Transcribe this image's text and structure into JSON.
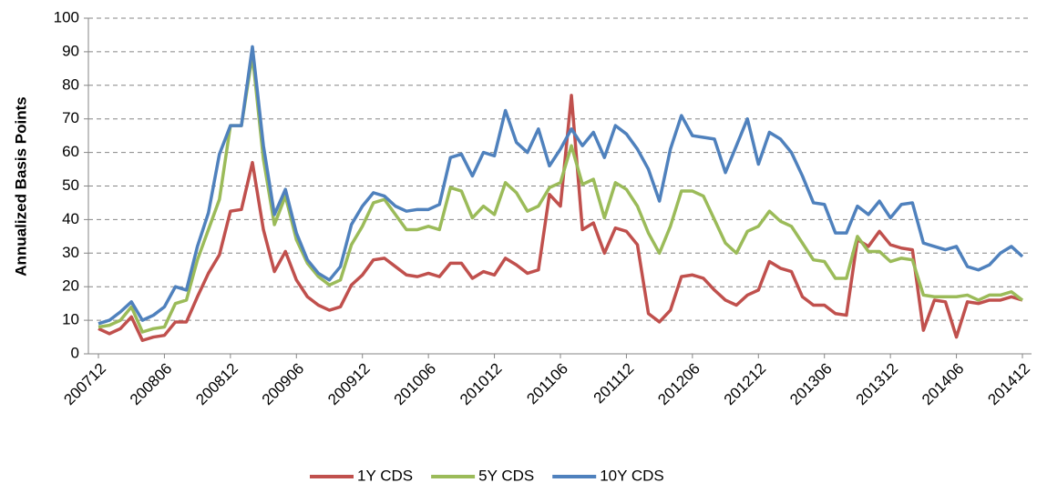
{
  "chart_data": {
    "type": "line",
    "y_label": "Annualized Basis Points",
    "categories": [
      "200712",
      null,
      null,
      null,
      null,
      null,
      "200806",
      null,
      null,
      null,
      null,
      null,
      "200812",
      null,
      null,
      null,
      null,
      null,
      "200906",
      null,
      null,
      null,
      null,
      null,
      "200912",
      null,
      null,
      null,
      null,
      null,
      "201006",
      null,
      null,
      null,
      null,
      null,
      "201012",
      null,
      null,
      null,
      null,
      null,
      "201106",
      null,
      null,
      null,
      null,
      null,
      "201112",
      null,
      null,
      null,
      null,
      null,
      "201206",
      null,
      null,
      null,
      null,
      null,
      "201212",
      null,
      null,
      null,
      null,
      null,
      "201306",
      null,
      null,
      null,
      null,
      null,
      "201312",
      null,
      null,
      null,
      null,
      null,
      "201406",
      null,
      null,
      null,
      null,
      null,
      "201412"
    ],
    "series": [
      {
        "name": "1Y CDS",
        "color": "#c0504d",
        "values": [
          7.5,
          6,
          7.5,
          11,
          4,
          5,
          5.5,
          9.5,
          9.5,
          17,
          24,
          29.5,
          42.5,
          43,
          57,
          37,
          24.5,
          30.5,
          22,
          17,
          14.5,
          13,
          14,
          20.5,
          23.5,
          28,
          28.5,
          26,
          23.5,
          23,
          24,
          23,
          27,
          27,
          22.5,
          24.5,
          23.5,
          28.5,
          26.5,
          24,
          25,
          47.5,
          44,
          77,
          37,
          39,
          30,
          37.5,
          36.5,
          32.5,
          12,
          9.5,
          13,
          23,
          23.5,
          22.5,
          19,
          16,
          14.5,
          17.5,
          19,
          27.5,
          25.5,
          24.5,
          17,
          14.5,
          14.5,
          12,
          11.5,
          34,
          32,
          36.5,
          32.5,
          31.5,
          31,
          7,
          16,
          15.5,
          5,
          15.5,
          15,
          16,
          16,
          17,
          16
        ]
      },
      {
        "name": "5Y CDS",
        "color": "#9bbb59",
        "values": [
          8,
          8.5,
          10,
          14,
          6.5,
          7.5,
          8,
          15,
          16,
          28,
          37,
          46,
          68,
          68,
          89,
          58,
          38.5,
          47,
          34,
          27,
          23,
          20.5,
          22,
          32.5,
          38,
          45,
          46,
          41.5,
          37,
          37,
          38,
          37,
          49.5,
          48.5,
          40.5,
          44,
          41.5,
          51,
          48,
          42.5,
          44,
          49.5,
          51,
          62,
          50.5,
          52,
          40.5,
          51,
          49,
          44,
          36,
          30,
          38,
          48.5,
          48.5,
          47,
          40,
          33,
          30,
          36.5,
          38,
          42.5,
          39.5,
          38,
          33,
          28,
          27.5,
          22.5,
          22.5,
          35,
          30.5,
          30.5,
          27.5,
          28.5,
          28,
          17.5,
          17,
          17,
          17,
          17.5,
          16,
          17.5,
          17.5,
          18.5,
          16
        ]
      },
      {
        "name": "10Y CDS",
        "color": "#4f81bd",
        "values": [
          9,
          10,
          12.5,
          15.5,
          10,
          11.5,
          14,
          20,
          19,
          32,
          42,
          59.5,
          68,
          68,
          91.5,
          62,
          41.5,
          49,
          36,
          28,
          24,
          22,
          26,
          38.5,
          44,
          48,
          47,
          44,
          42.5,
          43,
          43,
          44.5,
          58.5,
          59.5,
          53,
          60,
          59,
          72.5,
          63,
          60,
          67,
          56,
          61,
          67,
          62,
          66,
          58.5,
          68,
          65.5,
          61,
          55,
          45.5,
          61,
          71,
          65,
          64.5,
          64,
          54,
          62,
          70,
          56.5,
          66,
          64,
          60,
          53,
          45,
          44.5,
          36,
          36,
          44,
          41.5,
          45.5,
          40.5,
          44.5,
          45,
          33,
          32,
          31,
          32,
          26,
          25,
          26.5,
          30,
          32,
          29
        ]
      }
    ],
    "ylim": [
      0,
      100
    ],
    "yticks": [
      0,
      10,
      20,
      30,
      40,
      50,
      60,
      70,
      80,
      90,
      100
    ],
    "grid": true,
    "legend": "bottom"
  }
}
